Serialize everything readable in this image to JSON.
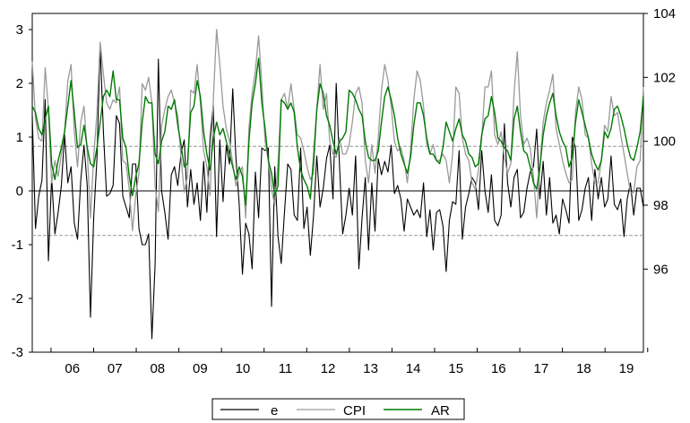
{
  "chart_data": {
    "type": "line",
    "x_tick_labels": [
      "06",
      "07",
      "08",
      "09",
      "10",
      "11",
      "12",
      "13",
      "14",
      "15",
      "16",
      "17",
      "18",
      "19"
    ],
    "left_axis": {
      "ylim": [
        -3,
        3.3
      ],
      "ticks": [
        "3",
        "2",
        "1",
        "0",
        "-1",
        "-2",
        "-3"
      ]
    },
    "right_axis": {
      "ylim": [
        93.4,
        104
      ],
      "ticks": [
        "104",
        "102",
        "100",
        "98",
        "96"
      ]
    },
    "reference_lines": [
      0.83,
      -0.83
    ],
    "x_range": [
      2005.56,
      2019.9
    ],
    "series": [
      {
        "name": "e",
        "axis": "left",
        "color": "#000000",
        "values": [
          1.4,
          -0.7,
          -0.1,
          0.2,
          1.7,
          -1.3,
          0.25,
          -0.8,
          -0.4,
          0.1,
          1.05,
          0.15,
          0.45,
          -0.6,
          -0.9,
          0.2,
          0.85,
          0.1,
          -2.35,
          -0.5,
          0.6,
          2.7,
          1.1,
          -0.1,
          -0.05,
          0.1,
          1.4,
          1.25,
          -0.1,
          -0.3,
          -0.5,
          0.5,
          0.5,
          -0.7,
          -1.0,
          -1.0,
          -0.8,
          -2.75,
          -1.35,
          2.45,
          0.0,
          -0.4,
          -0.9,
          0.3,
          0.45,
          0.1,
          0.7,
          0.95,
          -0.3,
          0.4,
          -0.25,
          0.15,
          -0.55,
          0.55,
          -0.4,
          1.0,
          1.6,
          -0.85,
          0.95,
          -0.2,
          0.85,
          0.5,
          1.9,
          0.6,
          -0.25,
          -1.55,
          -0.6,
          -0.8,
          -1.45,
          0.35,
          -0.5,
          0.8,
          0.75,
          0.8,
          -2.15,
          0.45,
          -0.85,
          -1.35,
          -0.4,
          0.5,
          0.4,
          -0.45,
          -0.55,
          0.8,
          -0.7,
          -0.3,
          -1.2,
          -0.45,
          0.65,
          -0.3,
          0.05,
          0.6,
          0.85,
          -0.15,
          2.0,
          0.5,
          -0.8,
          -0.45,
          0.05,
          -0.45,
          0.65,
          -1.45,
          -0.5,
          0.25,
          -1.1,
          0.15,
          -0.75,
          0.6,
          0.3,
          0.55,
          0.35,
          0.85,
          -0.05,
          0.1,
          -0.15,
          -0.75,
          -0.15,
          -0.3,
          -0.45,
          -0.35,
          -0.5,
          0.15,
          -0.85,
          -0.35,
          -1.1,
          -0.4,
          -0.35,
          -0.65,
          -1.5,
          -0.55,
          -0.2,
          -0.25,
          0.75,
          -0.9,
          -0.3,
          -0.05,
          0.25,
          0.15,
          -0.35,
          0.75,
          0.0,
          -0.4,
          0.3,
          -0.55,
          -0.65,
          -0.45,
          1.25,
          0.15,
          -0.3,
          0.25,
          0.4,
          -0.5,
          -0.4,
          0.05,
          0.35,
          0.45,
          1.15,
          -0.15,
          0.55,
          -0.45,
          0.25,
          -0.6,
          -0.45,
          -0.8,
          -0.15,
          -0.35,
          -0.6,
          1.0,
          0.8,
          -0.55,
          -0.35,
          0.05,
          0.25,
          -0.55,
          0.4,
          -0.15,
          0.25,
          -0.3,
          -0.15,
          0.65,
          -0.25,
          -0.35,
          -0.15,
          -0.85,
          -0.15,
          0.15,
          -0.45,
          0.05,
          0.05,
          -0.3
        ]
      },
      {
        "name": "CPI",
        "axis": "right",
        "color": "#9a9a9a",
        "values": [
          102.5,
          100.7,
          100.1,
          100.0,
          102.3,
          101.0,
          98.7,
          99.4,
          98.9,
          99.6,
          100.3,
          101.9,
          102.4,
          100.3,
          99.2,
          100.6,
          101.1,
          99.7,
          97.6,
          99.5,
          100.9,
          103.1,
          102.1,
          101.2,
          101.0,
          101.3,
          101.2,
          101.7,
          99.4,
          99.3,
          98.5,
          97.2,
          98.3,
          99.0,
          101.8,
          101.6,
          102.0,
          101.2,
          98.6,
          97.8,
          100.5,
          101.0,
          101.4,
          101.6,
          101.2,
          100.8,
          99.5,
          98.4,
          98.9,
          101.6,
          101.5,
          102.4,
          101.2,
          99.7,
          99.2,
          98.3,
          101.3,
          103.5,
          102.4,
          101.1,
          100.4,
          100.0,
          99.3,
          98.6,
          99.0,
          99.2,
          97.6,
          100.4,
          101.5,
          102.2,
          103.3,
          101.8,
          100.0,
          99.4,
          98.5,
          98.0,
          99.3,
          101.3,
          101.5,
          101.0,
          101.8,
          101.0,
          100.2,
          100.1,
          99.7,
          99.2,
          98.8,
          99.0,
          101.0,
          102.4,
          101.0,
          101.5,
          100.0,
          99.6,
          99.5,
          100.1,
          99.6,
          99.6,
          99.9,
          100.6,
          101.5,
          101.7,
          101.2,
          99.4,
          98.7,
          99.9,
          99.0,
          100.1,
          101.6,
          102.4,
          101.9,
          101.1,
          100.0,
          99.7,
          99.8,
          99.4,
          98.7,
          99.7,
          101.3,
          102.2,
          101.9,
          101.1,
          99.9,
          99.6,
          99.9,
          99.4,
          99.4,
          99.6,
          99.4,
          98.7,
          99.6,
          101.7,
          101.5,
          100.1,
          99.6,
          99.4,
          98.7,
          98.5,
          99.1,
          100.1,
          101.7,
          101.7,
          102.2,
          100.2,
          99.9,
          100.3,
          99.5,
          99.0,
          99.3,
          101.5,
          102.8,
          100.8,
          99.9,
          100.1,
          99.8,
          98.9,
          97.6,
          99.2,
          100.6,
          101.2,
          101.6,
          102.1,
          100.4,
          99.9,
          99.4,
          99.0,
          98.7,
          98.8,
          100.9,
          101.7,
          101.3,
          100.2,
          100.1,
          99.3,
          98.7,
          98.7,
          99.4,
          100.5,
          100.3,
          101.4,
          100.8,
          100.9,
          100.2,
          99.6,
          99.0,
          98.4,
          98.4,
          99.2,
          99.4,
          101.7
        ]
      },
      {
        "name": "AR",
        "axis": "right",
        "color": "#007a00",
        "values": [
          101.1,
          100.9,
          100.4,
          100.2,
          100.7,
          101.1,
          99.3,
          98.8,
          99.4,
          99.8,
          100.3,
          101.1,
          101.9,
          100.9,
          99.8,
          99.9,
          100.5,
          99.8,
          99.3,
          99.2,
          99.8,
          100.6,
          101.4,
          101.6,
          101.4,
          102.2,
          101.3,
          101.3,
          100.1,
          99.8,
          98.9,
          98.3,
          98.9,
          99.3,
          100.6,
          101.4,
          101.2,
          101.2,
          99.6,
          99.3,
          100.0,
          100.3,
          101.1,
          101.0,
          101.3,
          100.5,
          99.9,
          99.2,
          99.3,
          100.9,
          101.1,
          101.9,
          101.4,
          100.3,
          99.6,
          99.1,
          100.1,
          100.6,
          100.2,
          100.4,
          100.0,
          99.6,
          99.2,
          98.8,
          99.2,
          98.9,
          98.0,
          100.0,
          101.2,
          101.8,
          102.6,
          101.2,
          100.4,
          99.4,
          99.0,
          98.3,
          98.6,
          101.3,
          101.2,
          101.0,
          101.2,
          100.9,
          99.8,
          99.1,
          98.8,
          98.6,
          98.2,
          99.5,
          101.0,
          101.8,
          101.5,
          100.8,
          100.5,
          100.0,
          99.6,
          100.0,
          100.1,
          100.3,
          101.6,
          101.5,
          101.3,
          101.0,
          100.8,
          100.0,
          99.5,
          99.4,
          99.4,
          99.7,
          100.6,
          101.4,
          101.7,
          101.3,
          100.8,
          100.1,
          99.6,
          99.3,
          99.0,
          99.5,
          100.5,
          101.2,
          101.2,
          100.8,
          100.1,
          99.6,
          99.6,
          99.4,
          99.3,
          99.8,
          100.6,
          100.3,
          100.0,
          100.4,
          100.7,
          100.2,
          100.0,
          99.6,
          99.5,
          99.2,
          99.3,
          100.2,
          100.7,
          100.8,
          101.4,
          100.9,
          100.1,
          100.0,
          99.8,
          99.7,
          99.4,
          100.7,
          101.1,
          100.3,
          99.7,
          99.6,
          99.2,
          98.7,
          98.5,
          99.2,
          100.2,
          100.8,
          101.2,
          101.5,
          100.8,
          100.3,
          100.0,
          99.8,
          99.2,
          99.5,
          100.6,
          101.3,
          100.9,
          100.5,
          100.1,
          99.6,
          99.3,
          99.1,
          99.4,
          100.3,
          100.1,
          100.4,
          101.0,
          101.1,
          100.8,
          100.4,
          99.9,
          99.5,
          99.4,
          99.8,
          100.3,
          101.4
        ]
      }
    ],
    "legend": {
      "position": "bottom-center",
      "entries": [
        "e",
        "CPI",
        "AR"
      ]
    }
  }
}
